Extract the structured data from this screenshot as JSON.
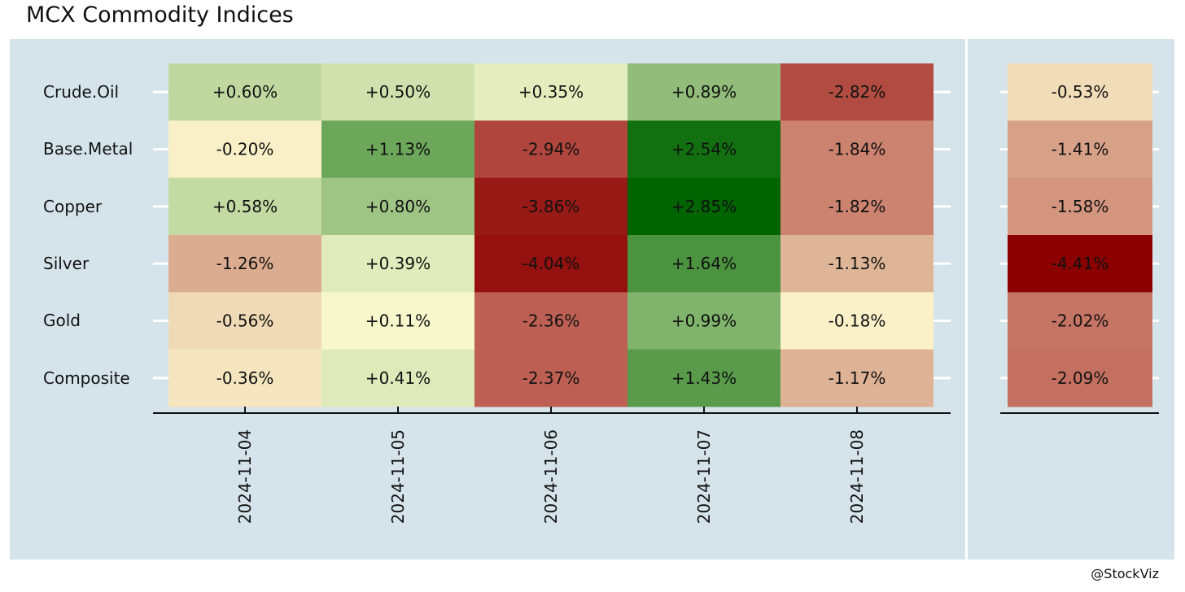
{
  "title": "MCX Commodity Indices",
  "credit": "@StockViz",
  "chart_data": {
    "type": "heatmap",
    "title": "MCX Commodity Indices",
    "rows": [
      "Crude.Oil",
      "Base.Metal",
      "Copper",
      "Silver",
      "Gold",
      "Composite"
    ],
    "columns": [
      "2024-11-04",
      "2024-11-05",
      "2024-11-06",
      "2024-11-07",
      "2024-11-08"
    ],
    "values": [
      [
        0.6,
        0.5,
        0.35,
        0.89,
        -2.82
      ],
      [
        -0.2,
        1.13,
        -2.94,
        2.54,
        -1.84
      ],
      [
        0.58,
        0.8,
        -3.86,
        2.85,
        -1.82
      ],
      [
        -1.26,
        0.39,
        -4.04,
        1.64,
        -1.13
      ],
      [
        -0.56,
        0.11,
        -2.36,
        0.99,
        -0.18
      ],
      [
        -0.36,
        0.41,
        -2.37,
        1.43,
        -1.17
      ]
    ],
    "labels": [
      [
        "+0.60%",
        "+0.50%",
        "+0.35%",
        "+0.89%",
        "-2.82%"
      ],
      [
        "-0.20%",
        "+1.13%",
        "-2.94%",
        "+2.54%",
        "-1.84%"
      ],
      [
        "+0.58%",
        "+0.80%",
        "-3.86%",
        "+2.85%",
        "-1.82%"
      ],
      [
        "-1.26%",
        "+0.39%",
        "-4.04%",
        "+1.64%",
        "-1.13%"
      ],
      [
        "-0.56%",
        "+0.11%",
        "-2.36%",
        "+0.99%",
        "-0.18%"
      ],
      [
        "-0.36%",
        "+0.41%",
        "-2.37%",
        "+1.43%",
        "-1.17%"
      ]
    ],
    "summary_values": [
      -0.53,
      -1.41,
      -1.58,
      -4.41,
      -2.02,
      -2.09
    ],
    "summary_labels": [
      "-0.53%",
      "-1.41%",
      "-1.58%",
      "-4.41%",
      "-2.02%",
      "-2.09%"
    ],
    "colors": {
      "panel_background": "#d5e4eb",
      "color_scale": [
        {
          "stop": -4.41,
          "color": "#8b0000"
        },
        {
          "stop": -2.2,
          "color": "#c1685a"
        },
        {
          "stop": -0.9,
          "color": "#e6c6a4"
        },
        {
          "stop": 0.0,
          "color": "#fffcd2"
        },
        {
          "stop": 0.4,
          "color": "#e1ebbb"
        },
        {
          "stop": 1.1,
          "color": "#6ea85c"
        },
        {
          "stop": 2.85,
          "color": "#006400"
        }
      ]
    },
    "grid": true,
    "legend": "none"
  }
}
